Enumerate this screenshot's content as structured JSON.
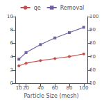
{
  "chart_data": {
    "type": "line",
    "xlabel": "Particle Size (mesh)",
    "x": [
      10,
      20,
      40,
      60,
      80,
      100
    ],
    "series": [
      {
        "name": "qe",
        "color": "#c0504d",
        "marker": "circle",
        "values": [
          2.6,
          3.0,
          3.4,
          3.7,
          4.0,
          4.4
        ]
      },
      {
        "name": "Removal",
        "color": "#7360a0",
        "marker": "square",
        "axis": "y2",
        "values": [
          68,
          73,
          79,
          84,
          88,
          92
        ]
      }
    ],
    "xlim": [
      5,
      105
    ],
    "xticks": [
      10,
      20,
      40,
      60,
      80,
      100
    ],
    "ylim": [
      0,
      10
    ],
    "yticks": [
      0,
      2,
      4,
      6,
      8,
      10
    ],
    "y2lim": [
      50,
      100
    ],
    "y2ticks": [
      50,
      60,
      70,
      80,
      90,
      100
    ],
    "legend": "top",
    "grid": false
  }
}
